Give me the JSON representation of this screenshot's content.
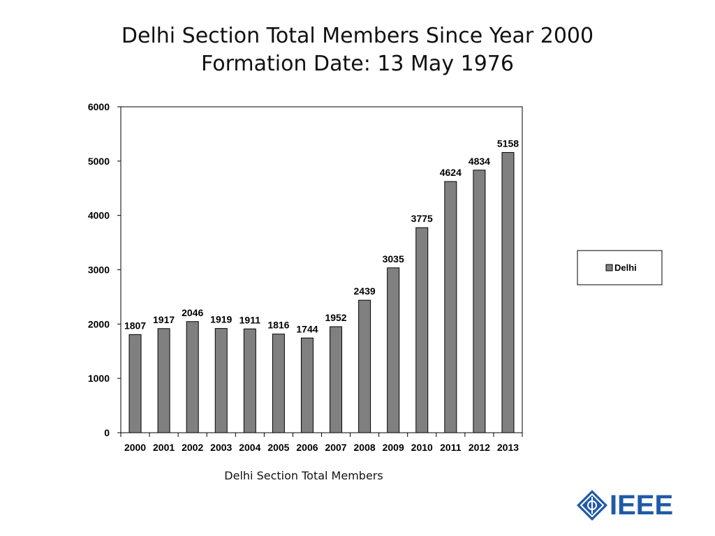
{
  "slide": {
    "title_line1": "Delhi Section Total Members Since Year 2000",
    "title_line2": "Formation Date: 13 May 1976",
    "caption": "Delhi Section Total Members"
  },
  "logo": {
    "text": "IEEE",
    "icon": "ieee-diamond-logo",
    "color": "#1f5aa6"
  },
  "colors": {
    "bar": "#808080",
    "bar_stroke": "#000000",
    "text": "#000000"
  },
  "chart_data": {
    "type": "bar",
    "categories": [
      "2000",
      "2001",
      "2002",
      "2003",
      "2004",
      "2005",
      "2006",
      "2007",
      "2008",
      "2009",
      "2010",
      "2011",
      "2012",
      "2013"
    ],
    "series": [
      {
        "name": "Delhi",
        "values": [
          1807,
          1917,
          2046,
          1919,
          1911,
          1816,
          1744,
          1952,
          2439,
          3035,
          3775,
          4624,
          4834,
          5158
        ]
      }
    ],
    "ylim": [
      0,
      6000
    ],
    "yticks": [
      0,
      1000,
      2000,
      3000,
      4000,
      5000,
      6000
    ],
    "data_labels": true,
    "grid": false,
    "legend": "right",
    "title": "",
    "xlabel": "",
    "ylabel": ""
  }
}
